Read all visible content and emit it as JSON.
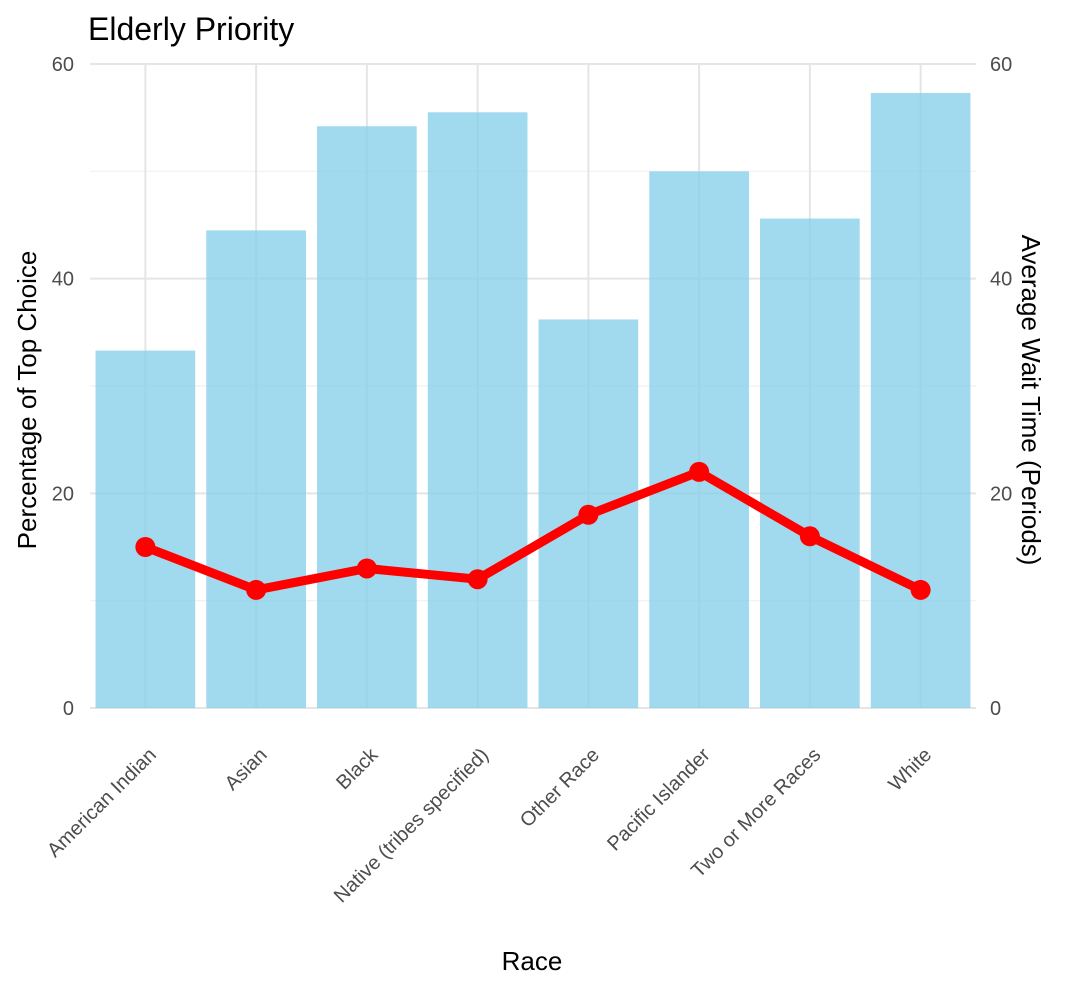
{
  "chart_data": {
    "type": "bar",
    "title": "Elderly Priority",
    "xlabel": "Race",
    "ylabel": "Percentage of Top Choice",
    "y2label": "Average Wait Time (Periods)",
    "categories": [
      "American Indian",
      "Asian",
      "Black",
      "Native (tribes specified)",
      "Other Race",
      "Pacific Islander",
      "Two or More Races",
      "White"
    ],
    "ylim": [
      0,
      60
    ],
    "y2lim": [
      0,
      60
    ],
    "yticks": [
      0,
      20,
      40,
      60
    ],
    "y2ticks": [
      0,
      20,
      40,
      60
    ],
    "grid": true,
    "series": [
      {
        "type": "bar",
        "axis": "left",
        "color": "#87CEEB",
        "values": [
          33.3,
          44.5,
          54.2,
          55.5,
          36.2,
          50.0,
          45.6,
          57.3
        ]
      },
      {
        "type": "line",
        "axis": "right",
        "color": "#FF0000",
        "values": [
          15,
          11,
          13,
          12,
          18,
          22,
          16,
          11
        ]
      }
    ]
  }
}
